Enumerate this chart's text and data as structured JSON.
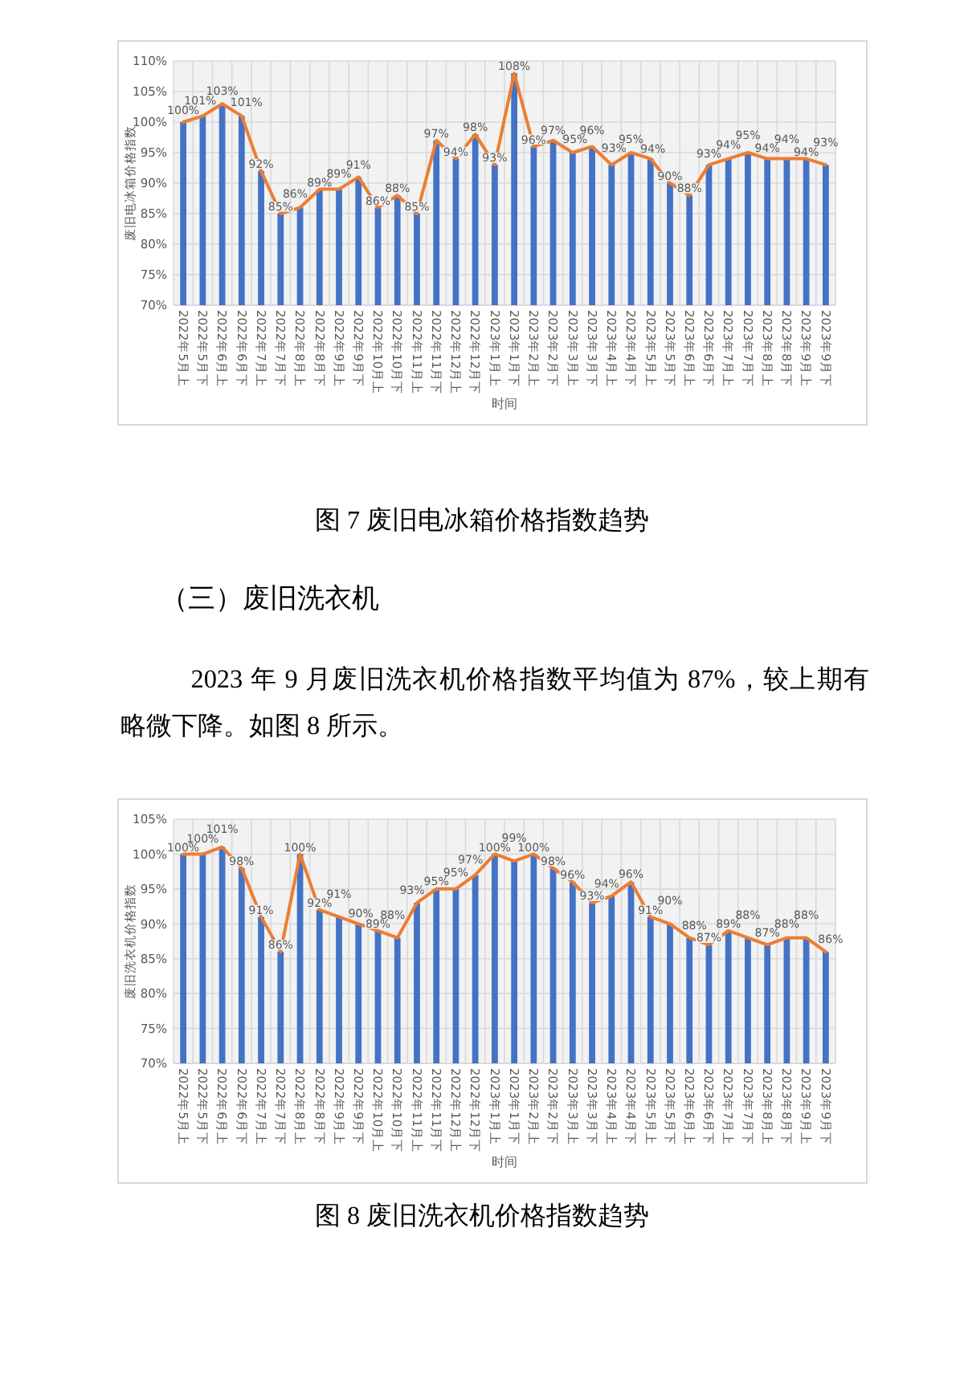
{
  "chart_data": [
    {
      "type": "bar",
      "xlabel": "时间",
      "ylabel": "废旧电冰箱价格指数",
      "categories": [
        "2022年5月上",
        "2022年5月下",
        "2022年6月上",
        "2022年6月下",
        "2022年7月上",
        "2022年7月下",
        "2022年8月上",
        "2022年8月下",
        "2022年9月上",
        "2022年9月下",
        "2022年10月上",
        "2022年10月下",
        "2022年11月上",
        "2022年11月下",
        "2022年12月上",
        "2022年12月下",
        "2023年1月上",
        "2023年1月下",
        "2023年2月上",
        "2023年2月下",
        "2023年3月上",
        "2023年3月下",
        "2023年4月上",
        "2023年4月下",
        "2023年5月上",
        "2023年5月下",
        "2023年6月上",
        "2023年6月下",
        "2023年7月上",
        "2023年7月下",
        "2023年8月上",
        "2023年8月下",
        "2023年9月上",
        "2023年9月下"
      ],
      "series": [
        {
          "color": "#4472c4",
          "values": [
            100,
            101,
            103,
            101,
            92,
            85,
            86,
            89,
            89,
            91,
            86,
            88,
            85,
            97,
            94,
            98,
            93,
            108,
            96,
            97,
            95,
            96,
            93,
            95,
            94,
            90,
            88,
            93,
            94,
            95,
            94,
            94,
            94,
            93
          ]
        },
        {
          "type": "line",
          "color": "#ed7d31",
          "values": [
            100,
            101,
            103,
            101,
            92,
            85,
            86,
            89,
            89,
            91,
            86,
            88,
            85,
            97,
            94,
            98,
            93,
            108,
            96,
            97,
            95,
            96,
            93,
            95,
            94,
            90,
            88,
            93,
            94,
            95,
            94,
            94,
            94,
            93
          ],
          "value_labels": [
            "100%",
            "101%",
            "103%",
            "101%",
            "92%",
            "85%",
            "86%",
            "89%",
            "89%",
            "91%",
            "86%",
            "88%",
            "85%",
            "97%",
            "94%",
            "98%",
            "93%",
            "108%",
            "96%",
            "97%",
            "95%",
            "96%",
            "93%",
            "95%",
            "94%",
            "90%",
            "88%",
            "93%",
            "94%",
            "95%",
            "94%",
            "94%",
            "94%",
            "93%"
          ]
        }
      ],
      "ylim": [
        70,
        110
      ],
      "yticks": [
        {
          "value": 70,
          "label": "70%"
        },
        {
          "value": 75,
          "label": "75%"
        },
        {
          "value": 80,
          "label": "80%"
        },
        {
          "value": 85,
          "label": "85%"
        },
        {
          "value": 90,
          "label": "90%"
        },
        {
          "value": 95,
          "label": "95%"
        },
        {
          "value": 100,
          "label": "100%"
        },
        {
          "value": 105,
          "label": "105%"
        },
        {
          "value": 110,
          "label": "110%"
        }
      ],
      "grid": true,
      "annotations": [
        "图 7 废旧电冰箱价格指数趋势"
      ]
    },
    {
      "type": "bar",
      "title": "（三）废旧洗衣机",
      "subtitle": "2023 年 9 月废旧洗衣机价格指数平均值为 87%，较上期有略微下降。如图 8 所示。",
      "xlabel": "时间",
      "ylabel": "废旧洗衣机价格指数",
      "categories": [
        "2022年5月上",
        "2022年5月下",
        "2022年6月上",
        "2022年6月下",
        "2022年7月上",
        "2022年7月下",
        "2022年8月上",
        "2022年8月下",
        "2022年9月上",
        "2022年9月下",
        "2022年10月上",
        "2022年10月下",
        "2022年11月上",
        "2022年11月下",
        "2022年12月上",
        "2022年12月下",
        "2023年1月上",
        "2023年1月下",
        "2023年2月上",
        "2023年2月下",
        "2023年3月上",
        "2023年3月下",
        "2023年4月上",
        "2023年4月下",
        "2023年5月上",
        "2023年5月下",
        "2023年6月上",
        "2023年6月下",
        "2023年7月上",
        "2023年7月下",
        "2023年8月上",
        "2023年8月下",
        "2023年9月上",
        "2023年9月下"
      ],
      "series": [
        {
          "color": "#4472c4",
          "values": [
            100,
            100,
            101,
            98,
            91,
            86,
            100,
            92,
            91,
            90,
            89,
            88,
            93,
            95,
            95,
            97,
            100,
            99,
            100,
            98,
            96,
            93,
            94,
            96,
            91,
            90,
            88,
            87,
            89,
            88,
            87,
            88,
            88,
            86
          ]
        },
        {
          "type": "line",
          "color": "#ed7d31",
          "values": [
            100,
            100,
            101,
            98,
            91,
            86,
            100,
            92,
            91,
            90,
            89,
            88,
            93,
            95,
            95,
            97,
            100,
            99,
            100,
            98,
            96,
            93,
            94,
            96,
            91,
            90,
            88,
            87,
            89,
            88,
            87,
            88,
            88,
            86
          ],
          "value_labels": [
            "100%",
            "100%",
            "101%",
            "98%",
            "91%",
            "86%",
            "100%",
            "92%",
            "91%",
            "90%",
            "89%",
            "88%",
            "93%",
            "95%",
            "95%",
            "97%",
            "100%",
            "99%",
            "100%",
            "98%",
            "96%",
            "93%",
            "94%",
            "96%",
            "91%",
            "90%",
            "88%",
            "87%",
            "89%",
            "88%",
            "87%",
            "88%",
            "88%",
            "86%"
          ]
        }
      ],
      "ylim": [
        70,
        105
      ],
      "yticks": [
        {
          "value": 70,
          "label": "70%"
        },
        {
          "value": 75,
          "label": "75%"
        },
        {
          "value": 80,
          "label": "80%"
        },
        {
          "value": 85,
          "label": "85%"
        },
        {
          "value": 90,
          "label": "90%"
        },
        {
          "value": 95,
          "label": "95%"
        },
        {
          "value": 100,
          "label": "100%"
        },
        {
          "value": 105,
          "label": "105%"
        }
      ],
      "grid": true,
      "annotations": [
        "图 8 废旧洗衣机价格指数趋势"
      ]
    }
  ]
}
